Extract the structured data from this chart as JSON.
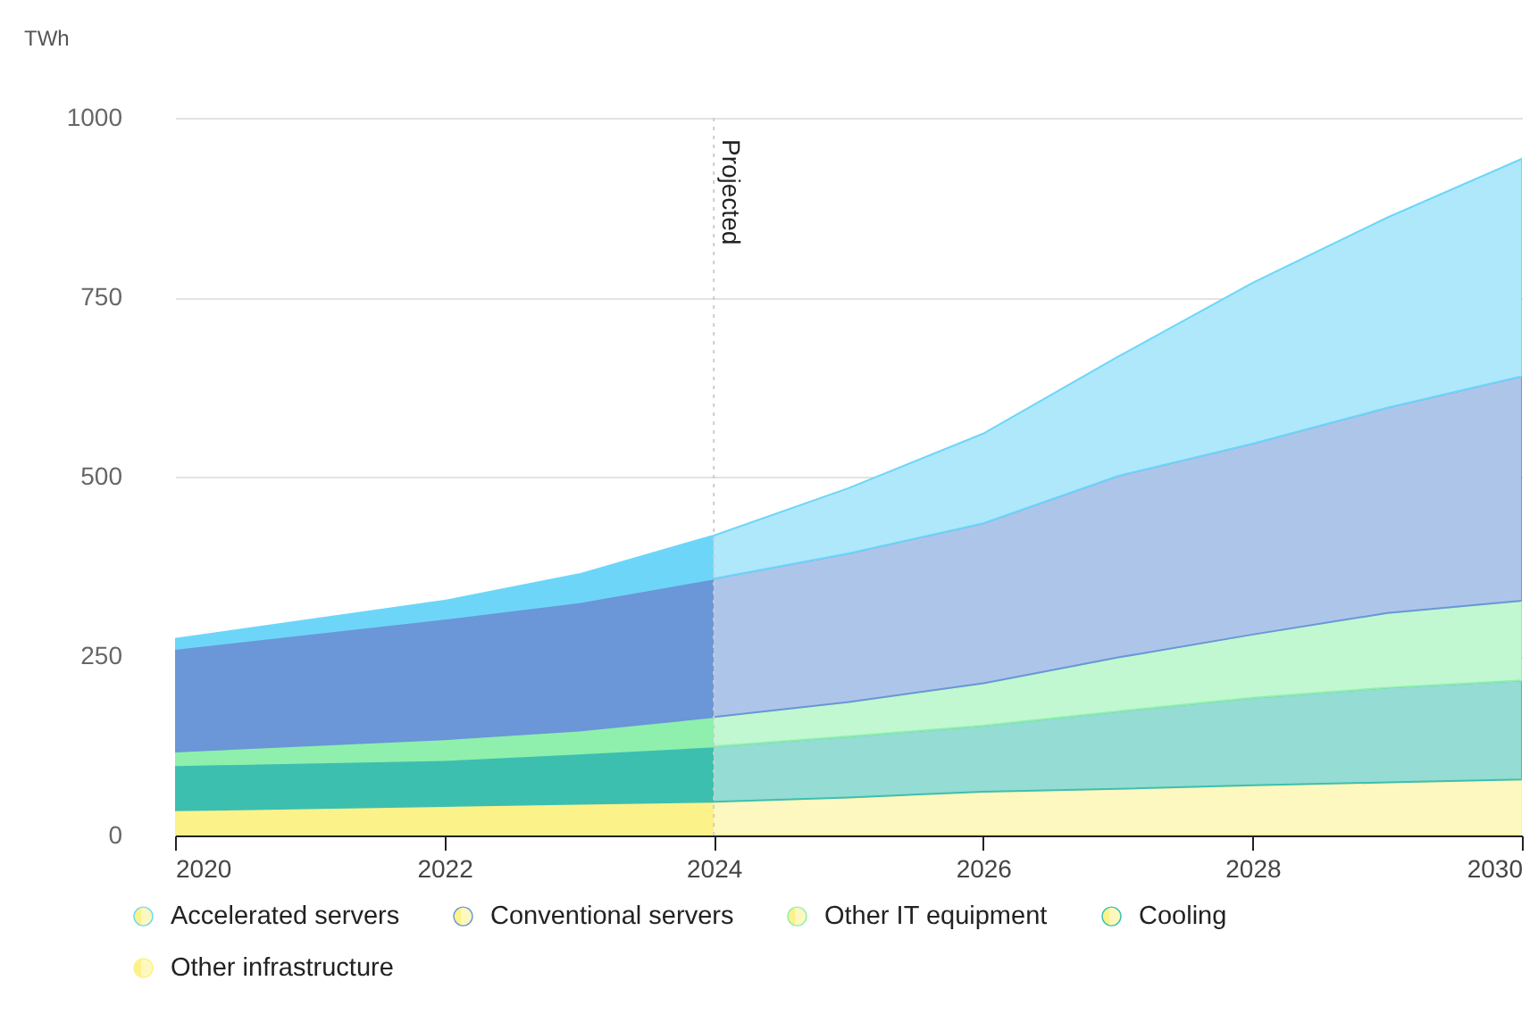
{
  "chart_data": {
    "type": "area",
    "stacked": true,
    "ylabel": "TWh",
    "x": [
      2020,
      2022,
      2023,
      2024,
      2025,
      2026,
      2027,
      2028,
      2029,
      2030
    ],
    "xlim": [
      2020,
      2030
    ],
    "xticks": [
      2020,
      2022,
      2024,
      2026,
      2028,
      2030
    ],
    "ylim": [
      0,
      1000
    ],
    "yticks": [
      0,
      250,
      500,
      750,
      1000
    ],
    "grid": "y",
    "legend": "bottom",
    "ref_lines": [
      {
        "axis": "x",
        "value": 2024,
        "label": "Projected",
        "line_style": "dotted",
        "color": "#cccccc"
      }
    ],
    "series": [
      {
        "name": "Other infrastructure",
        "color": "#fcf28a",
        "values": [
          35,
          41,
          44,
          47,
          53,
          61,
          65,
          70,
          74,
          78
        ]
      },
      {
        "name": "Cooling",
        "color": "#3dbfb0",
        "values": [
          63,
          64,
          70,
          77,
          85,
          92,
          108,
          122,
          132,
          138
        ]
      },
      {
        "name": "Other IT equipment",
        "color": "#8ef0ac",
        "values": [
          19,
          29,
          32,
          41,
          48,
          59,
          75,
          88,
          104,
          111
        ]
      },
      {
        "name": "Conventional servers",
        "color": "#6b96d8",
        "values": [
          143,
          168,
          179,
          193,
          207,
          223,
          253,
          266,
          286,
          313
        ]
      },
      {
        "name": "Accelerated servers",
        "color": "#6dd6f8",
        "values": [
          14,
          25,
          39,
          60,
          91,
          125,
          166,
          224,
          265,
          303
        ]
      }
    ]
  }
}
